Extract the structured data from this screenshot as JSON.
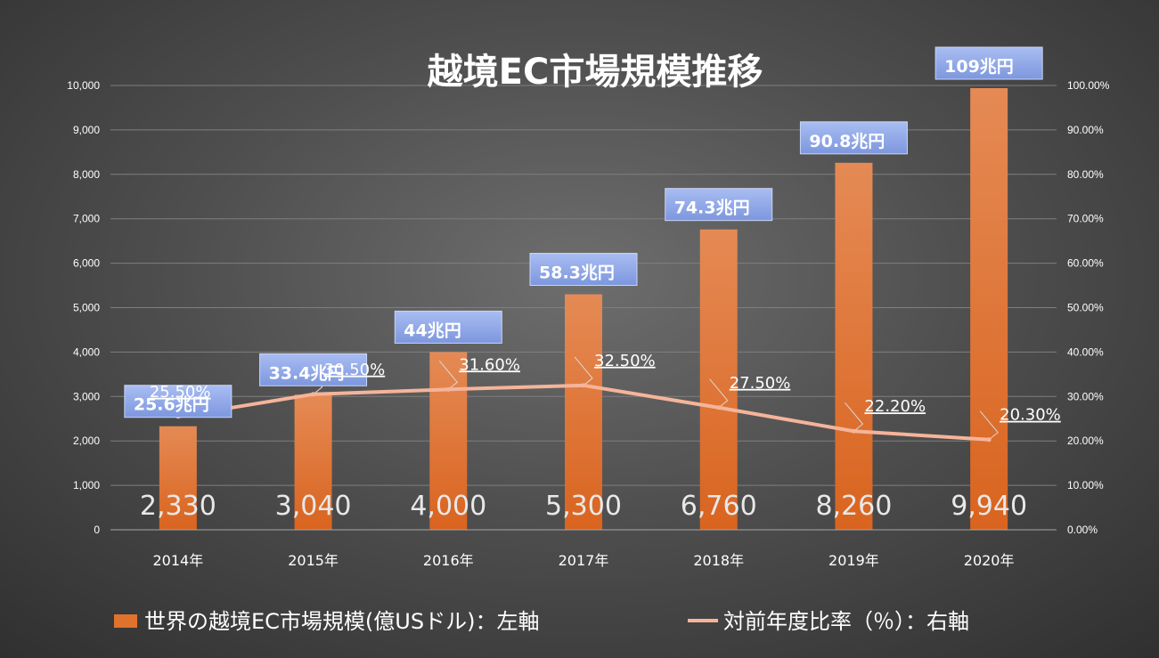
{
  "chart_data": {
    "type": "bar",
    "title": "越境EC市場規模推移",
    "categories": [
      "2014年",
      "2015年",
      "2016年",
      "2017年",
      "2018年",
      "2019年",
      "2020年"
    ],
    "y_left": {
      "min": 0,
      "max": 10000,
      "step": 1000,
      "tick_labels": [
        "0",
        "1,000",
        "2,000",
        "3,000",
        "4,000",
        "5,000",
        "6,000",
        "7,000",
        "8,000",
        "9,000",
        "10,000"
      ]
    },
    "y_right": {
      "min": 0,
      "max": 100,
      "step": 10,
      "tick_labels": [
        "0.00%",
        "10.00%",
        "20.00%",
        "30.00%",
        "40.00%",
        "50.00%",
        "60.00%",
        "70.00%",
        "80.00%",
        "90.00%",
        "100.00%"
      ]
    },
    "series": [
      {
        "name": "世界の越境EC市場規模(億USドル)：左軸",
        "type": "bar",
        "axis": "left",
        "color": "#e0722c",
        "values": [
          2330,
          3040,
          4000,
          5300,
          6760,
          8260,
          9940
        ],
        "value_labels": [
          "2,330",
          "3,040",
          "4,000",
          "5,300",
          "6,760",
          "8,260",
          "9,940"
        ]
      },
      {
        "name": "対前年度比率（％）：右軸",
        "type": "line",
        "axis": "right",
        "color": "#f5b49a",
        "values": [
          25.5,
          30.5,
          31.6,
          32.5,
          27.5,
          22.2,
          20.3
        ],
        "value_labels": [
          "25.50%",
          "30.50%",
          "31.60%",
          "32.50%",
          "27.50%",
          "22.20%",
          "20.30%"
        ]
      }
    ],
    "yen_labels": [
      "25.6兆円",
      "33.4兆円",
      "44兆円",
      "58.3兆円",
      "74.3兆円",
      "90.8兆円",
      "109兆円"
    ],
    "grid": true,
    "legend": "bottom"
  }
}
